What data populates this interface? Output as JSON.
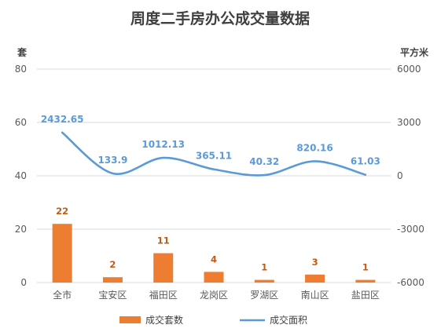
{
  "chart_data": {
    "type": "bar",
    "title": "周度二手房办公成交量数据",
    "categories": [
      "全市",
      "宝安区",
      "福田区",
      "龙岗区",
      "罗湖区",
      "南山区",
      "盐田区"
    ],
    "series": [
      {
        "name": "成交套数",
        "type": "bar",
        "axis": "left",
        "color": "#ed7d31",
        "values": [
          22,
          2,
          11,
          4,
          1,
          3,
          1
        ],
        "labels": [
          "22",
          "2",
          "11",
          "4",
          "1",
          "3",
          "1"
        ]
      },
      {
        "name": "成交面积",
        "type": "line",
        "axis": "right",
        "color": "#5b9bd5",
        "smooth": true,
        "values": [
          2432.65,
          133.9,
          1012.13,
          365.11,
          40.32,
          820.16,
          61.03
        ],
        "labels": [
          "2432.65",
          "133.9",
          "1012.13",
          "365.11",
          "40.32",
          "820.16",
          "61.03"
        ]
      }
    ],
    "y_left": {
      "unit": "套",
      "ylim": [
        0,
        80
      ],
      "ticks": [
        "0",
        "20",
        "40",
        "60",
        "80"
      ]
    },
    "y_right": {
      "unit": "平方米",
      "ylim": [
        -6000,
        6000
      ],
      "ticks": [
        "-6000",
        "-3000",
        "0",
        "3000",
        "6000"
      ]
    },
    "grid": true,
    "legend_position": "bottom"
  }
}
